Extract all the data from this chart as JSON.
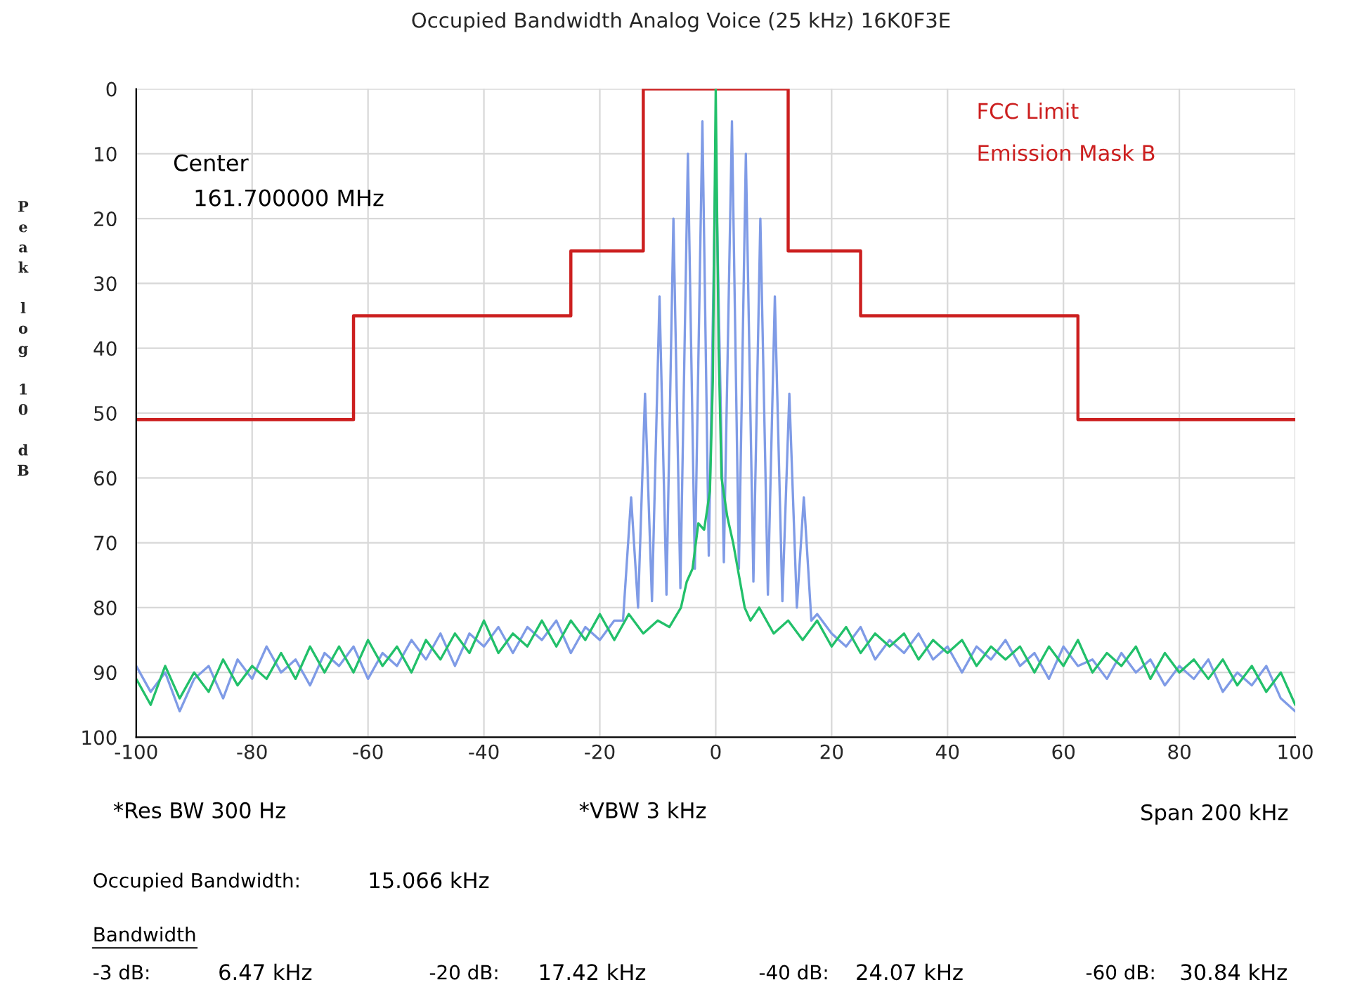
{
  "chart_data": {
    "type": "line",
    "title": "Occupied Bandwidth Analog Voice (25 kHz) 16K0F3E",
    "ylabel": "Peak log 10 dB",
    "xlim": [
      -100,
      100
    ],
    "xticks": [
      -100,
      -80,
      -60,
      -40,
      -20,
      0,
      20,
      40,
      60,
      80,
      100
    ],
    "ylim": [
      100,
      0
    ],
    "yticks": [
      0,
      10,
      20,
      30,
      40,
      50,
      60,
      70,
      80,
      90,
      100
    ],
    "grid": true,
    "series": [
      {
        "color": "#cc1f1f",
        "x": [
          -100,
          -62.5,
          -62.5,
          -25,
          -25,
          -12.5,
          -12.5,
          12.5,
          12.5,
          25,
          25,
          62.5,
          62.5,
          100
        ],
        "values": [
          51,
          51,
          35,
          35,
          25,
          25,
          0,
          0,
          25,
          25,
          35,
          35,
          51,
          51
        ]
      },
      {
        "color": "#7f9be6",
        "x": [
          -100,
          -97.5,
          -95,
          -92.5,
          -90,
          -87.5,
          -85,
          -82.5,
          -80,
          -77.5,
          -75,
          -72.5,
          -70,
          -67.5,
          -65,
          -62.5,
          -60,
          -57.5,
          -55,
          -52.5,
          -50,
          -47.5,
          -45,
          -42.5,
          -40,
          -37.5,
          -35,
          -32.5,
          -30,
          -27.5,
          -25,
          -22.5,
          -20,
          -17.5,
          -16,
          -14.6,
          -13.4,
          -12.2,
          -11,
          -9.7,
          -8.5,
          -7.3,
          -6.1,
          -4.8,
          -3.6,
          -2.3,
          -1.2,
          0,
          1.4,
          2.8,
          4,
          5.2,
          6.5,
          7.7,
          9,
          10.2,
          11.5,
          12.7,
          14,
          15.2,
          16.5,
          17.5,
          20,
          22.5,
          25,
          27.5,
          30,
          32.5,
          35,
          37.5,
          40,
          42.5,
          45,
          47.5,
          50,
          52.5,
          55,
          57.5,
          60,
          62.5,
          65,
          67.5,
          70,
          72.5,
          75,
          77.5,
          80,
          82.5,
          85,
          87.5,
          90,
          92.5,
          95,
          97.5,
          100
        ],
        "values": [
          89,
          93,
          90,
          96,
          91,
          89,
          94,
          88,
          91,
          86,
          90,
          88,
          92,
          87,
          89,
          86,
          91,
          87,
          89,
          85,
          88,
          84,
          89,
          84,
          86,
          83,
          87,
          83,
          85,
          82,
          87,
          83,
          85,
          82,
          82,
          63,
          80,
          47,
          79,
          32,
          78,
          20,
          77,
          10,
          74,
          5,
          72,
          10,
          73,
          5,
          74,
          10,
          76,
          20,
          78,
          32,
          79,
          47,
          80,
          63,
          82,
          81,
          84,
          86,
          83,
          88,
          85,
          87,
          84,
          88,
          86,
          90,
          86,
          88,
          85,
          89,
          87,
          91,
          86,
          89,
          88,
          91,
          87,
          90,
          88,
          92,
          89,
          91,
          88,
          93,
          90,
          92,
          89,
          94,
          96
        ]
      },
      {
        "color": "#22c06a",
        "x": [
          -100,
          -97.5,
          -95,
          -92.5,
          -90,
          -87.5,
          -85,
          -82.5,
          -80,
          -77.5,
          -75,
          -72.5,
          -70,
          -67.5,
          -65,
          -62.5,
          -60,
          -57.5,
          -55,
          -52.5,
          -50,
          -47.5,
          -45,
          -42.5,
          -40,
          -37.5,
          -35,
          -32.5,
          -30,
          -27.5,
          -25,
          -22.5,
          -20,
          -17.5,
          -15,
          -12.5,
          -10,
          -8,
          -6,
          -5,
          -4,
          -3,
          -2,
          -1,
          -0.5,
          0,
          0.5,
          1,
          2,
          3,
          4,
          5,
          6,
          7.5,
          10,
          12.5,
          15,
          17.5,
          20,
          22.5,
          25,
          27.5,
          30,
          32.5,
          35,
          37.5,
          40,
          42.5,
          45,
          47.5,
          50,
          52.5,
          55,
          57.5,
          60,
          62.5,
          65,
          67.5,
          70,
          72.5,
          75,
          77.5,
          80,
          82.5,
          85,
          87.5,
          90,
          92.5,
          95,
          97.5,
          100
        ],
        "values": [
          91,
          95,
          89,
          94,
          90,
          93,
          88,
          92,
          89,
          91,
          87,
          91,
          86,
          90,
          86,
          90,
          85,
          89,
          86,
          90,
          85,
          88,
          84,
          87,
          82,
          87,
          84,
          86,
          82,
          86,
          82,
          85,
          81,
          85,
          81,
          84,
          82,
          83,
          80,
          76,
          74,
          67,
          68,
          62,
          45,
          0,
          40,
          60,
          66,
          70,
          75,
          80,
          82,
          80,
          84,
          82,
          85,
          82,
          86,
          83,
          87,
          84,
          86,
          84,
          88,
          85,
          87,
          85,
          89,
          86,
          88,
          86,
          90,
          86,
          89,
          85,
          90,
          87,
          89,
          86,
          91,
          87,
          90,
          88,
          91,
          88,
          92,
          89,
          93,
          90,
          95
        ]
      }
    ],
    "annotations": [
      "Center",
      "161.700000 MHz",
      "FCC Limit",
      "Emission Mask B",
      "*Res BW 300 Hz",
      "*VBW 3 kHz",
      "Span 200 kHz",
      "Occupied Bandwidth:",
      "15.066 kHz",
      "Bandwidth",
      "-3 dB:",
      "6.47 kHz",
      "-20 dB:",
      "17.42 kHz",
      "-40 dB:",
      "24.07 kHz",
      "-60 dB:",
      "30.84 kHz"
    ]
  }
}
